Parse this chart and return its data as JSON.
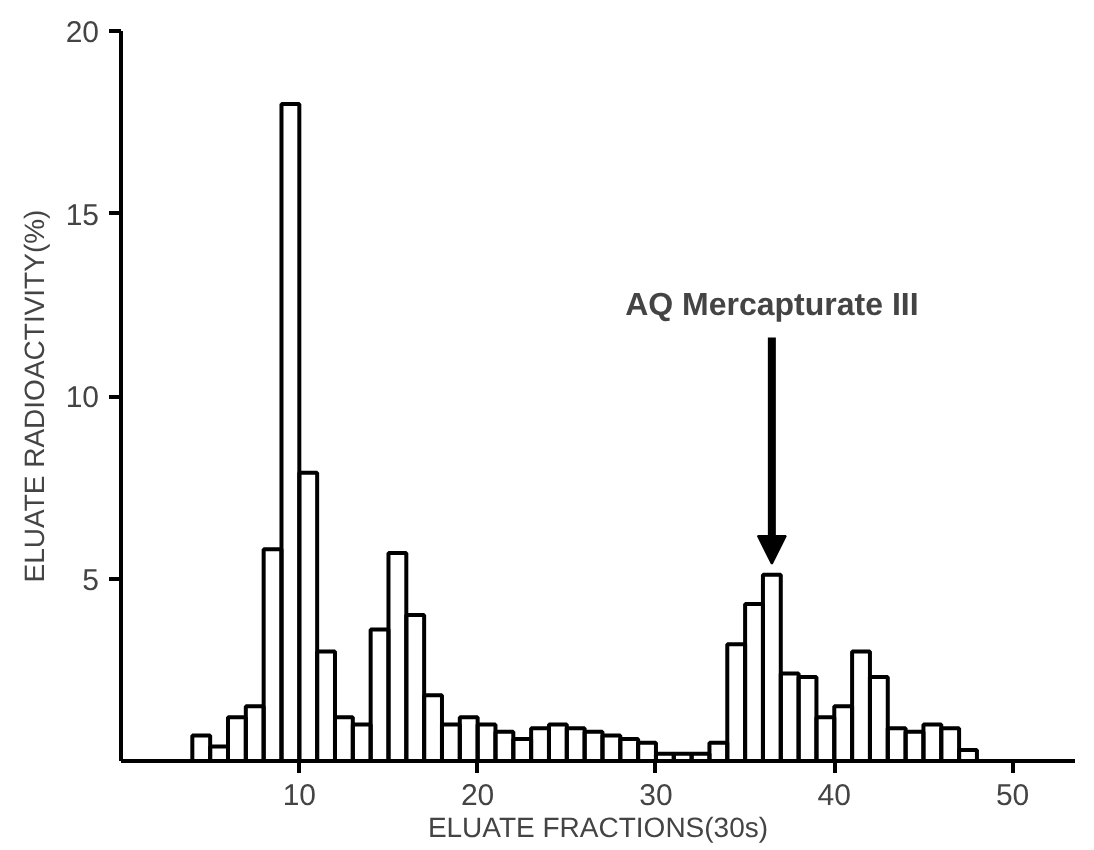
{
  "chart_data": {
    "type": "histogram",
    "xlabel": "ELUATE FRACTIONS(30s)",
    "ylabel": "ELUATE RADIOACTIVITY(%)",
    "bins": [
      4,
      5,
      6,
      7,
      8,
      9,
      10,
      11,
      12,
      13,
      14,
      15,
      16,
      17,
      18,
      19,
      20,
      21,
      22,
      23,
      24,
      25,
      26,
      27,
      28,
      29,
      30,
      31,
      32,
      33,
      34,
      35,
      36,
      37,
      38,
      39,
      40,
      41,
      42,
      43,
      44,
      45,
      46,
      47,
      48
    ],
    "values": [
      0.7,
      0.4,
      1.2,
      1.5,
      5.8,
      18,
      7.9,
      3.0,
      1.2,
      1.0,
      3.6,
      5.7,
      4.0,
      1.8,
      1.0,
      1.2,
      1.0,
      0.8,
      0.6,
      0.9,
      1.0,
      0.9,
      0.8,
      0.7,
      0.6,
      0.5,
      0.2,
      0.2,
      0.2,
      0.5,
      3.2,
      4.3,
      5.1,
      2.4,
      2.3,
      1.2,
      1.5,
      3.0,
      2.3,
      0.9,
      0.8,
      1.0,
      0.9,
      0.3
    ],
    "color": "#000000",
    "xlim": [
      0,
      53.5
    ],
    "ylim": [
      0,
      20
    ],
    "xticks": [
      10,
      20,
      30,
      40,
      50
    ],
    "yticks": [
      5,
      10,
      15,
      20
    ],
    "grid": false,
    "annotations": [
      {
        "text": "AQ Mercapturate III",
        "x": 36.5,
        "y": 5.1
      }
    ]
  }
}
